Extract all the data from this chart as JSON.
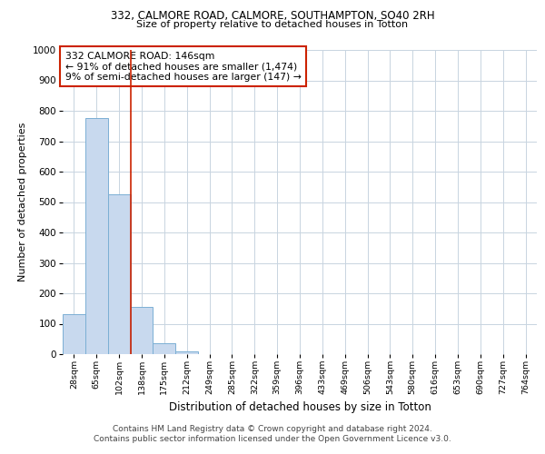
{
  "title_line1": "332, CALMORE ROAD, CALMORE, SOUTHAMPTON, SO40 2RH",
  "title_line2": "Size of property relative to detached houses in Totton",
  "xlabel": "Distribution of detached houses by size in Totton",
  "ylabel": "Number of detached properties",
  "bar_labels": [
    "28sqm",
    "65sqm",
    "102sqm",
    "138sqm",
    "175sqm",
    "212sqm",
    "249sqm",
    "285sqm",
    "322sqm",
    "359sqm",
    "396sqm",
    "433sqm",
    "469sqm",
    "506sqm",
    "543sqm",
    "580sqm",
    "616sqm",
    "653sqm",
    "690sqm",
    "727sqm",
    "764sqm"
  ],
  "bar_values": [
    130,
    775,
    525,
    155,
    37,
    10,
    0,
    0,
    0,
    0,
    0,
    0,
    0,
    0,
    0,
    0,
    0,
    0,
    0,
    0,
    0
  ],
  "bar_color": "#c8d9ee",
  "bar_edge_color": "#7bafd4",
  "grid_color": "#c8d4e0",
  "red_line_color": "#cc2200",
  "annotation_text": "332 CALMORE ROAD: 146sqm\n← 91% of detached houses are smaller (1,474)\n9% of semi-detached houses are larger (147) →",
  "annotation_box_color": "#cc2200",
  "ylim": [
    0,
    1000
  ],
  "yticks": [
    0,
    100,
    200,
    300,
    400,
    500,
    600,
    700,
    800,
    900,
    1000
  ],
  "footer_line1": "Contains HM Land Registry data © Crown copyright and database right 2024.",
  "footer_line2": "Contains public sector information licensed under the Open Government Licence v3.0.",
  "background_color": "#ffffff"
}
